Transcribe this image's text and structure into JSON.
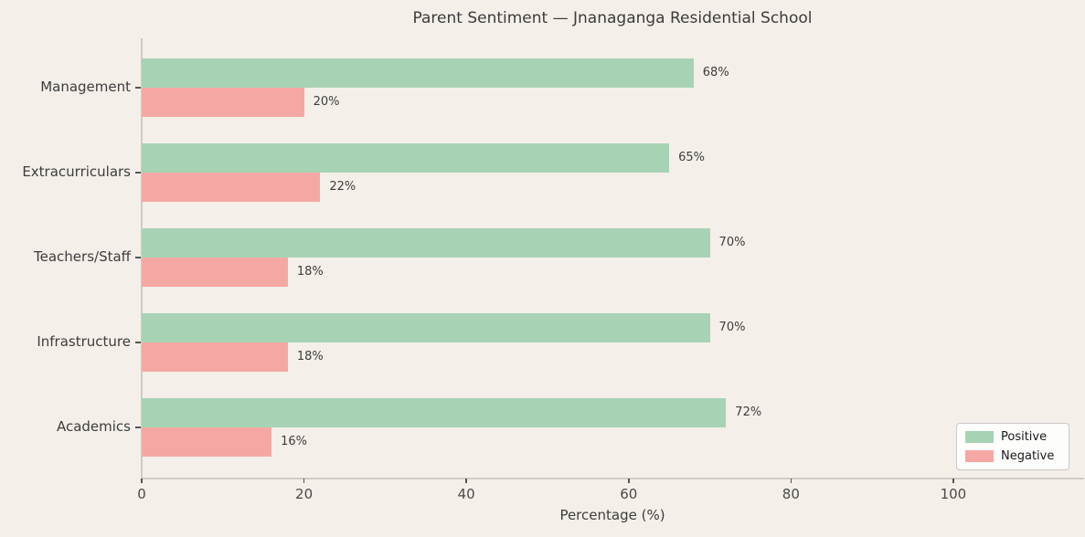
{
  "title": "Parent Sentiment — Jnanaganga Residential School",
  "chart_data": {
    "type": "bar",
    "orientation": "horizontal",
    "title": "Parent Sentiment — Jnanaganga Residential School",
    "categories_top_to_bottom": [
      "Management",
      "Extracurriculars",
      "Teachers/Staff",
      "Infrastructure",
      "Academics"
    ],
    "series": [
      {
        "name": "Positive",
        "color": "#a7d3b4",
        "values": [
          68,
          65,
          70,
          70,
          72
        ],
        "labels": [
          "68%",
          "65%",
          "70%",
          "70%",
          "72%"
        ]
      },
      {
        "name": "Negative",
        "color": "#f5a8a3",
        "values": [
          20,
          22,
          18,
          18,
          16
        ],
        "labels": [
          "20%",
          "22%",
          "18%",
          "18%",
          "16%"
        ]
      }
    ],
    "xlabel": "Percentage (%)",
    "xticks": [
      0,
      20,
      40,
      60,
      80,
      100
    ],
    "xtick_labels": [
      "0",
      "20",
      "40",
      "60",
      "80",
      "100"
    ],
    "xlim": [
      0,
      116
    ],
    "grid": false,
    "legend": {
      "position": "lower-right",
      "entries": [
        {
          "label": "Positive",
          "color": "#a7d3b4"
        },
        {
          "label": "Negative",
          "color": "#f5a8a3"
        }
      ]
    },
    "colors": {
      "background": "#f4efe9",
      "spine": "#cfccc6",
      "text": "#3d3d3d",
      "legend_background": "#fdfdfc"
    }
  }
}
